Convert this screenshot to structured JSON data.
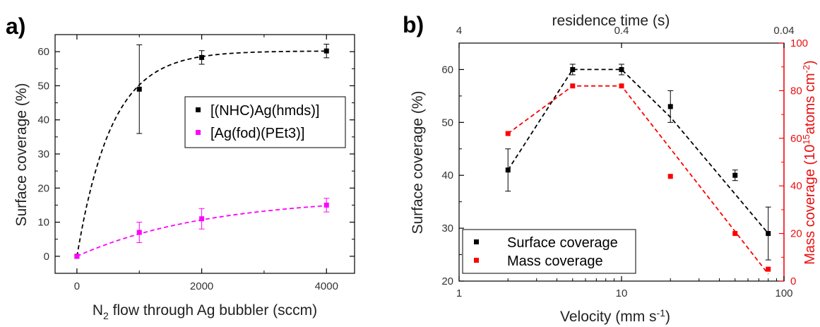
{
  "chart_data": [
    {
      "panel_label": "a)",
      "type": "scatter",
      "xlabel_main": "N",
      "xlabel_sub": "2",
      "xlabel_rest": " flow through Ag bubbler (sccm)",
      "ylabel": "Surface coverage (%)",
      "xlim": [
        -350,
        4450
      ],
      "ylim": [
        -5,
        65
      ],
      "xticks": [
        0,
        2000,
        4000
      ],
      "yticks": [
        0,
        10,
        20,
        30,
        40,
        50,
        60
      ],
      "xtick_labels": [
        "0",
        "2000",
        "4000"
      ],
      "ytick_labels": [
        "0",
        "10",
        "20",
        "30",
        "40",
        "50",
        "60"
      ],
      "legend_position": "center-right",
      "series": [
        {
          "name": "[(NHC)Ag(hmds)]",
          "color": "#000000",
          "points": [
            {
              "x": 0,
              "y": 0,
              "err": 0
            },
            {
              "x": 1000,
              "y": 49,
              "err": 13
            },
            {
              "x": 2000,
              "y": 58.3,
              "err": 2
            },
            {
              "x": 4000,
              "y": 60.2,
              "err": 2
            }
          ],
          "fit": {
            "a": 60.2,
            "k": 0.0018
          }
        },
        {
          "name": "[Ag(fod)(PEt3)]",
          "color": "#ff00ff",
          "points": [
            {
              "x": 0,
              "y": 0,
              "err": 0
            },
            {
              "x": 1000,
              "y": 7,
              "err": 3
            },
            {
              "x": 2000,
              "y": 11,
              "err": 3
            },
            {
              "x": 4000,
              "y": 15,
              "err": 2
            }
          ],
          "fit": {
            "a": 17.5,
            "k": 0.00047
          }
        }
      ]
    },
    {
      "panel_label": "b)",
      "type": "scatter",
      "xscale": "log",
      "xlabel_main": "Velocity (mm s",
      "xlabel_sup": "-1",
      "xlabel_end": ")",
      "ylabel": "Surface coverage (%)",
      "y2label_main": "Mass coverage (10",
      "y2label_sup1": "15",
      "y2label_mid": "atoms cm",
      "y2label_sup2": "-2",
      "y2label_end": ")",
      "top_axis_label": "residence time (s)",
      "xlim": [
        1,
        100
      ],
      "ylim": [
        20,
        65
      ],
      "y2lim": [
        0,
        100
      ],
      "xticks": [
        1,
        10,
        100
      ],
      "xtick_labels": [
        "1",
        "10",
        "100"
      ],
      "yticks": [
        20,
        30,
        40,
        50,
        60
      ],
      "ytick_labels": [
        "20",
        "30",
        "40",
        "50",
        "60"
      ],
      "y2ticks": [
        0,
        20,
        40,
        60,
        80,
        100
      ],
      "y2tick_labels": [
        "0",
        "20",
        "40",
        "60",
        "80",
        "100"
      ],
      "top_ticks": [
        1,
        10,
        100
      ],
      "top_tick_labels": [
        "4",
        "0.4",
        "0.04"
      ],
      "legend_position": "bottom-left",
      "series": [
        {
          "name": "Surface coverage",
          "axis": "left",
          "color": "#000000",
          "points": [
            {
              "x": 2,
              "y": 41,
              "err": 4
            },
            {
              "x": 5,
              "y": 60,
              "err": 1
            },
            {
              "x": 10,
              "y": 60,
              "err": 1
            },
            {
              "x": 20,
              "y": 53,
              "err": 3
            },
            {
              "x": 50,
              "y": 40,
              "err": 1
            },
            {
              "x": 80,
              "y": 29,
              "err": 5
            }
          ],
          "trend": [
            [
              2,
              41
            ],
            [
              5,
              60
            ],
            [
              10,
              60
            ],
            [
              20,
              51
            ],
            [
              80,
              29
            ]
          ]
        },
        {
          "name": "Mass coverage",
          "axis": "right",
          "color": "#ff0000",
          "points": [
            {
              "x": 2,
              "y": 62
            },
            {
              "x": 5,
              "y": 82
            },
            {
              "x": 10,
              "y": 82
            },
            {
              "x": 20,
              "y": 44
            },
            {
              "x": 50,
              "y": 20
            },
            {
              "x": 80,
              "y": 5
            }
          ],
          "trend": [
            [
              2,
              62
            ],
            [
              5,
              82
            ],
            [
              10,
              82
            ],
            [
              80,
              3
            ]
          ]
        }
      ]
    }
  ]
}
